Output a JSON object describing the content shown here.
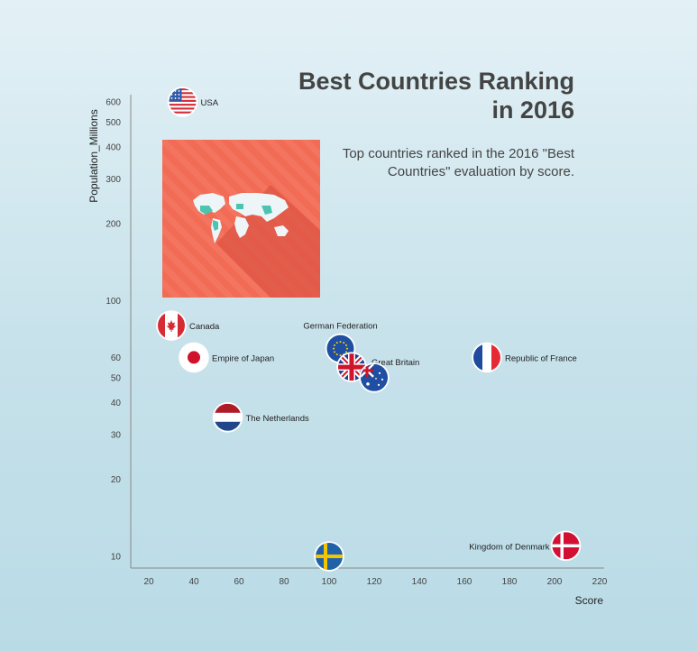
{
  "title": "Best Countries Ranking in 2016",
  "subtitle": "Top countries ranked in the 2016 \"Best Countries\" evaluation by score.",
  "colors": {
    "axis": "#888888",
    "infographic_bg": "#f26b55",
    "infographic_shadow": "#d94e3f",
    "map_land": "#eef5f8",
    "map_highlight": "#4bc4b0"
  },
  "chart_data": {
    "type": "scatter",
    "xlabel": "Score",
    "ylabel": "Population_Millions",
    "xlim": [
      12,
      222
    ],
    "ylim": [
      9,
      640
    ],
    "y_scale": "log",
    "grid": false,
    "x_ticks": [
      20,
      40,
      60,
      80,
      100,
      120,
      140,
      160,
      180,
      200,
      220
    ],
    "y_ticks": [
      10,
      20,
      30,
      40,
      50,
      60,
      100,
      200,
      300,
      400,
      500,
      600
    ],
    "points": [
      {
        "label": "USA",
        "x": 35,
        "y": 600,
        "flag": "usa-flag"
      },
      {
        "label": "Canada",
        "x": 30,
        "y": 80,
        "flag": "canada-flag"
      },
      {
        "label": "Empire of Japan",
        "x": 40,
        "y": 60,
        "flag": "japan-flag"
      },
      {
        "label": "The Netherlands",
        "x": 55,
        "y": 35,
        "flag": "netherlands-flag"
      },
      {
        "label": "German Federation",
        "x": 105,
        "y": 65,
        "flag": "eu-flag"
      },
      {
        "label": "Great Britain",
        "x": 110,
        "y": 55,
        "flag": "uk-flag"
      },
      {
        "label": "",
        "x": 120,
        "y": 50,
        "flag": "australia-flag"
      },
      {
        "label": "Republic of France",
        "x": 170,
        "y": 60,
        "flag": "france-flag"
      },
      {
        "label": "Kingdom of Denmark",
        "x": 205,
        "y": 11,
        "flag": "denmark-flag"
      },
      {
        "label": "",
        "x": 100,
        "y": 10,
        "flag": "sweden-flag"
      }
    ]
  }
}
